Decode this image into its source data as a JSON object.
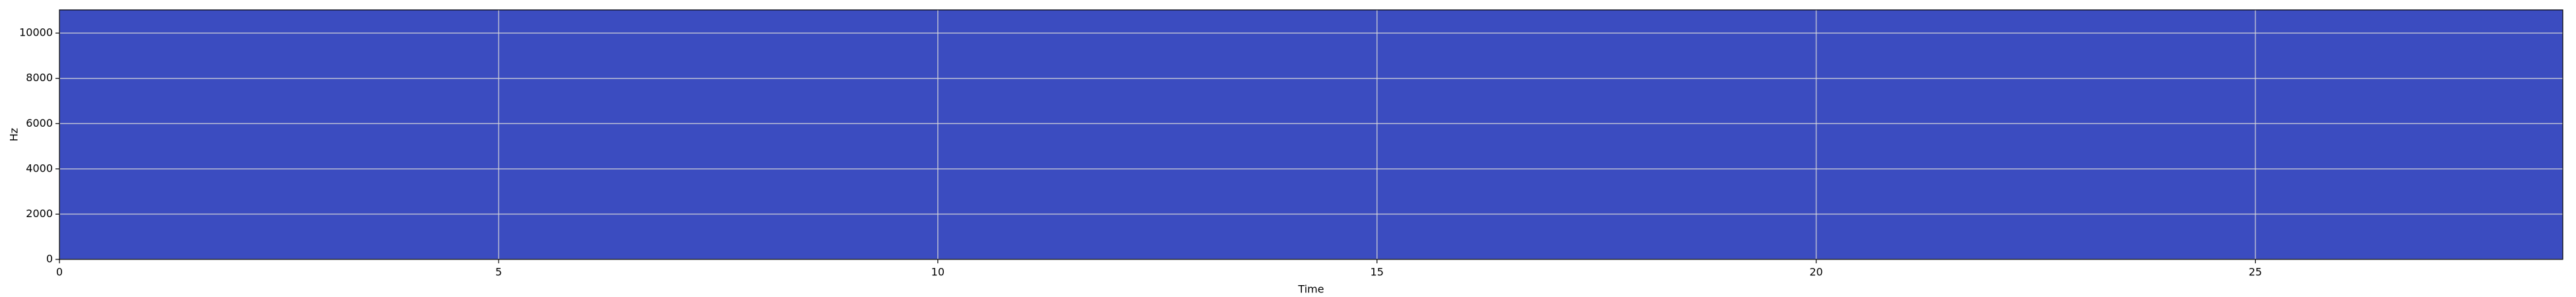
{
  "chart_data": {
    "type": "spectrogram",
    "xlabel": "Time",
    "ylabel": "Hz",
    "xlim": [
      0,
      28.5
    ],
    "xticks": [
      0,
      5,
      10,
      15,
      20,
      25
    ],
    "ylim": [
      0,
      11025
    ],
    "yticks": [
      0,
      2000,
      4000,
      6000,
      8000,
      10000
    ],
    "grid": true,
    "color": "#3b4cc0"
  }
}
